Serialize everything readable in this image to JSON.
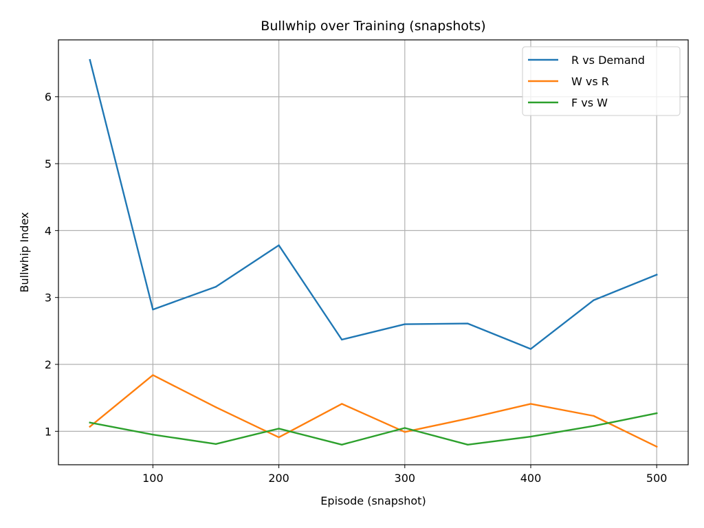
{
  "chart_data": {
    "type": "line",
    "title": "Bullwhip over Training (snapshots)",
    "xlabel": "Episode (snapshot)",
    "ylabel": "Bullwhip Index",
    "x": [
      50,
      100,
      150,
      200,
      250,
      300,
      350,
      400,
      450,
      500
    ],
    "xlim": [
      25,
      525
    ],
    "ylim": [
      0.5,
      6.85
    ],
    "xticks": [
      100,
      200,
      300,
      400,
      500
    ],
    "yticks": [
      1,
      2,
      3,
      4,
      5,
      6
    ],
    "grid": true,
    "legend_position": "top-right",
    "series": [
      {
        "name": "R vs Demand",
        "color": "#1f77b4",
        "values": [
          6.55,
          2.82,
          3.16,
          3.78,
          2.37,
          2.6,
          2.61,
          2.23,
          2.96,
          3.34
        ]
      },
      {
        "name": "W vs R",
        "color": "#ff7f0e",
        "values": [
          1.07,
          1.84,
          1.36,
          0.91,
          1.41,
          0.99,
          1.19,
          1.41,
          1.23,
          0.77
        ]
      },
      {
        "name": "F vs W",
        "color": "#2ca02c",
        "values": [
          1.13,
          0.95,
          0.81,
          1.04,
          0.8,
          1.05,
          0.8,
          0.92,
          1.08,
          1.27
        ]
      }
    ]
  }
}
